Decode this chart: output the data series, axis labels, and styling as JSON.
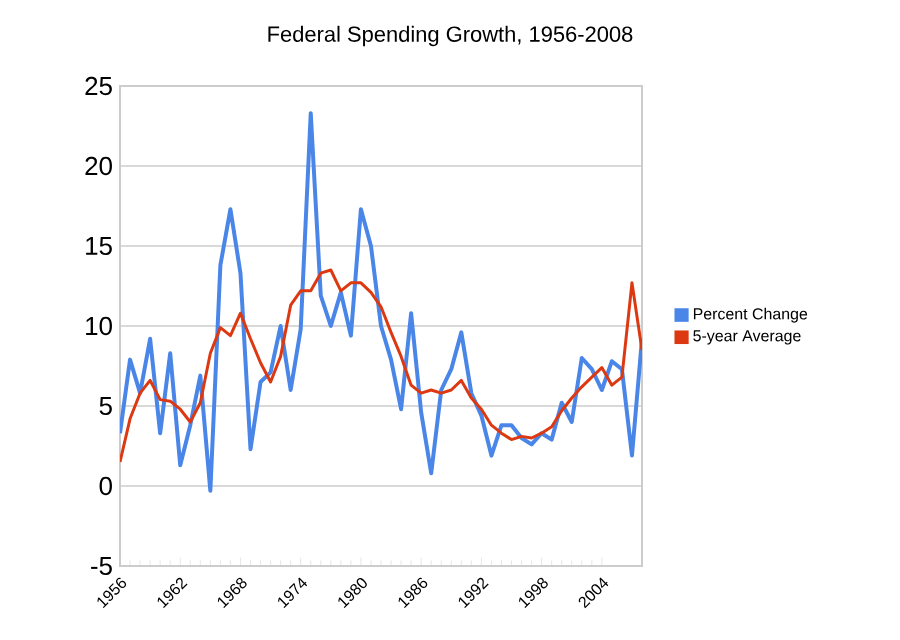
{
  "chart_data": {
    "type": "line",
    "title": "Federal Spending Growth, 1956-2008",
    "x": [
      1956,
      1957,
      1958,
      1959,
      1960,
      1961,
      1962,
      1963,
      1964,
      1965,
      1966,
      1967,
      1968,
      1969,
      1970,
      1971,
      1972,
      1973,
      1974,
      1975,
      1976,
      1977,
      1978,
      1979,
      1980,
      1981,
      1982,
      1983,
      1984,
      1985,
      1986,
      1987,
      1988,
      1989,
      1990,
      1991,
      1992,
      1993,
      1994,
      1995,
      1996,
      1997,
      1998,
      1999,
      2000,
      2001,
      2002,
      2003,
      2004,
      2005,
      2006,
      2007,
      2008
    ],
    "series": [
      {
        "name": "Percent Change",
        "color": "#4a86e8",
        "values": [
          3.3,
          7.9,
          5.8,
          9.2,
          3.3,
          8.3,
          1.3,
          3.8,
          6.9,
          -0.3,
          13.8,
          17.3,
          13.3,
          2.3,
          6.5,
          7.1,
          10,
          6.0,
          9.8,
          23.3,
          11.9,
          10,
          12.1,
          9.4,
          17.3,
          15,
          10,
          7.9,
          4.8,
          10.8,
          4.6,
          0.8,
          6.0,
          7.3,
          9.6,
          5.8,
          4.4,
          1.9,
          3.8,
          3.8,
          3.0,
          2.6,
          3.3,
          2.9,
          5.2,
          4.0,
          8.0,
          7.3,
          6.0,
          7.8,
          7.3,
          1.9,
          9.2
        ]
      },
      {
        "name": "5-year Average",
        "color": "#dc3912",
        "values": [
          1.5,
          4.2,
          5.8,
          6.6,
          5.4,
          5.3,
          4.8,
          4.0,
          5.2,
          8.3,
          9.9,
          9.4,
          10.8,
          9.2,
          7.7,
          6.5,
          8.1,
          11.3,
          12.2,
          12.2,
          13.3,
          13.5,
          12.2,
          12.7,
          12.7,
          12.1,
          11.2,
          9.6,
          8.1,
          6.3,
          5.8,
          6.0,
          5.8,
          6.0,
          6.6,
          5.5,
          4.8,
          3.8,
          3.3,
          2.9,
          3.1,
          3.0,
          3.3,
          3.7,
          4.7,
          5.5,
          6.2,
          6.8,
          7.4,
          6.3,
          6.8,
          12.7,
          8.5
        ]
      }
    ],
    "xlim": [
      1956,
      2008
    ],
    "xticks": [
      1956,
      1962,
      1968,
      1974,
      1980,
      1986,
      1992,
      1998,
      2004
    ],
    "ylim": [
      -5,
      25
    ],
    "yticks": [
      -5,
      0,
      5,
      10,
      15,
      20,
      25
    ],
    "grid": "y",
    "legend": "right",
    "marker": "none",
    "line_style": "solid"
  }
}
